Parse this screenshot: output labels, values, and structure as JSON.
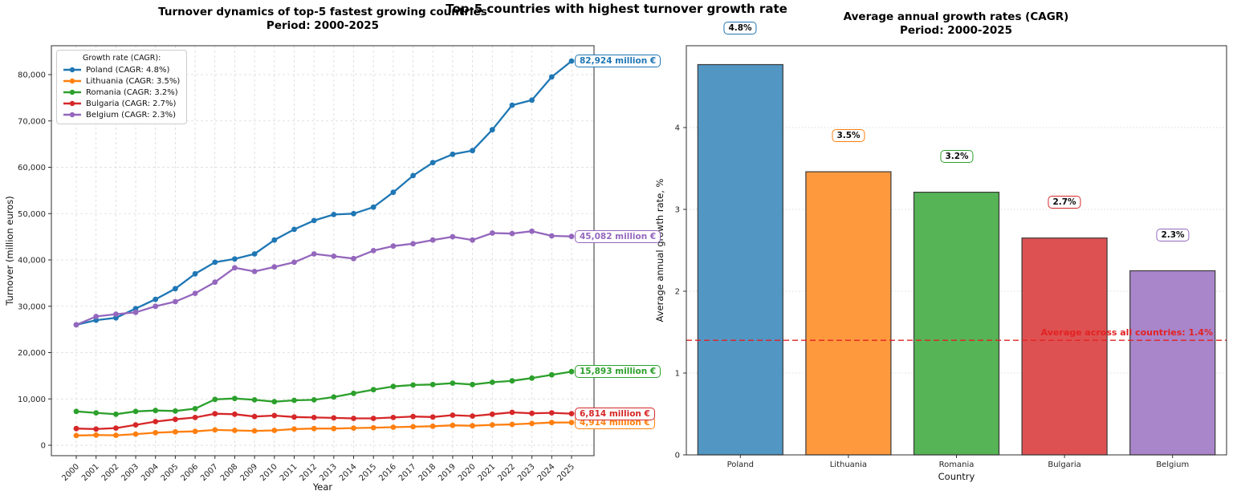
{
  "figure": {
    "suptitle": "Top-5 countries with highest turnover growth rate",
    "background": "#ffffff"
  },
  "chart_data": [
    {
      "id": "turnover-line-chart",
      "type": "line",
      "title": "Turnover dynamics of top-5 fastest growing countries",
      "subtitle": "Period: 2000-2025",
      "xlabel": "Year",
      "ylabel": "Turnover (million euros)",
      "x": [
        "2000",
        "2001",
        "2002",
        "2003",
        "2004",
        "2005",
        "2006",
        "2007",
        "2008",
        "2009",
        "2010",
        "2011",
        "2012",
        "2013",
        "2014",
        "2015",
        "2016",
        "2017",
        "2018",
        "2019",
        "2020",
        "2021",
        "2022",
        "2023",
        "2024",
        "2025"
      ],
      "ylim": [
        0,
        86000
      ],
      "yticks": [
        0,
        10000,
        20000,
        30000,
        40000,
        50000,
        60000,
        70000,
        80000
      ],
      "ytick_labels": [
        "0",
        "10,000",
        "20,000",
        "30,000",
        "40,000",
        "50,000",
        "60,000",
        "70,000",
        "80,000"
      ],
      "grid": true,
      "legend": {
        "title": "Growth rate (CAGR):",
        "position": "upper-left"
      },
      "series": [
        {
          "name": "Poland",
          "legend_label": "Poland (CAGR: 4.8%)",
          "color": "#1f77b4",
          "end_annotation": "82,924 million €",
          "values": [
            26000,
            27000,
            27500,
            29500,
            31500,
            33800,
            37000,
            39500,
            40200,
            41300,
            44300,
            46600,
            48500,
            49800,
            50000,
            51400,
            54600,
            58200,
            61000,
            62800,
            63600,
            68100,
            73400,
            74500,
            79500,
            82924
          ]
        },
        {
          "name": "Lithuania",
          "legend_label": "Lithuania (CAGR: 3.5%)",
          "color": "#ff7f0e",
          "end_annotation": "4,914 million €",
          "values": [
            2100,
            2200,
            2150,
            2400,
            2700,
            2900,
            3000,
            3300,
            3200,
            3100,
            3200,
            3500,
            3600,
            3600,
            3700,
            3800,
            3900,
            4000,
            4100,
            4300,
            4200,
            4400,
            4500,
            4700,
            4900,
            4914
          ]
        },
        {
          "name": "Romania",
          "legend_label": "Romania (CAGR: 3.2%)",
          "color": "#2ca02c",
          "end_annotation": "15,893 million €",
          "values": [
            7300,
            7000,
            6700,
            7300,
            7500,
            7400,
            7900,
            9900,
            10100,
            9800,
            9400,
            9700,
            9800,
            10400,
            11200,
            12000,
            12700,
            13000,
            13100,
            13400,
            13100,
            13600,
            13900,
            14500,
            15200,
            15893
          ]
        },
        {
          "name": "Bulgaria",
          "legend_label": "Bulgaria (CAGR: 2.7%)",
          "color": "#d62728",
          "end_annotation": "6,814 million €",
          "values": [
            3600,
            3500,
            3700,
            4400,
            5100,
            5600,
            6000,
            6800,
            6700,
            6200,
            6400,
            6100,
            6000,
            5900,
            5800,
            5800,
            6000,
            6200,
            6100,
            6500,
            6300,
            6700,
            7100,
            6900,
            7000,
            6814
          ]
        },
        {
          "name": "Belgium",
          "legend_label": "Belgium (CAGR: 2.3%)",
          "color": "#9467bd",
          "end_annotation": "45,082 million €",
          "values": [
            26000,
            27800,
            28300,
            28700,
            30000,
            31000,
            32800,
            35200,
            38300,
            37500,
            38500,
            39500,
            41300,
            40800,
            40300,
            42000,
            43000,
            43500,
            44300,
            45000,
            44300,
            45800,
            45700,
            46200,
            45200,
            45082
          ]
        }
      ]
    },
    {
      "id": "cagr-bar-chart",
      "type": "bar",
      "title": "Average annual growth rates (CAGR)",
      "subtitle": "Period: 2000-2025",
      "xlabel": "Country",
      "ylabel": "Average annual growth rate, %",
      "categories": [
        "Poland",
        "Lithuania",
        "Romania",
        "Bulgaria",
        "Belgium"
      ],
      "values": [
        4.77,
        3.46,
        3.21,
        2.65,
        2.25
      ],
      "bar_labels": [
        "4.8%",
        "3.5%",
        "3.2%",
        "2.7%",
        "2.3%"
      ],
      "bar_fill_colors": [
        "#5296c3",
        "#ff993e",
        "#56b356",
        "#de5152",
        "#a985ca"
      ],
      "bar_edge_color": "#3a3a3a",
      "label_border_colors": [
        "#1f77b4",
        "#ff7f0e",
        "#2ca02c",
        "#d62728",
        "#9467bd"
      ],
      "ylim": [
        0,
        5
      ],
      "yticks": [
        0,
        1,
        2,
        3,
        4
      ],
      "ytick_labels": [
        "0",
        "1",
        "2",
        "3",
        "4"
      ],
      "grid": true,
      "average_line": {
        "value": 1.4,
        "label": "Average across all countries: 1.4%",
        "color": "#e32222",
        "style": "dashed"
      }
    }
  ]
}
